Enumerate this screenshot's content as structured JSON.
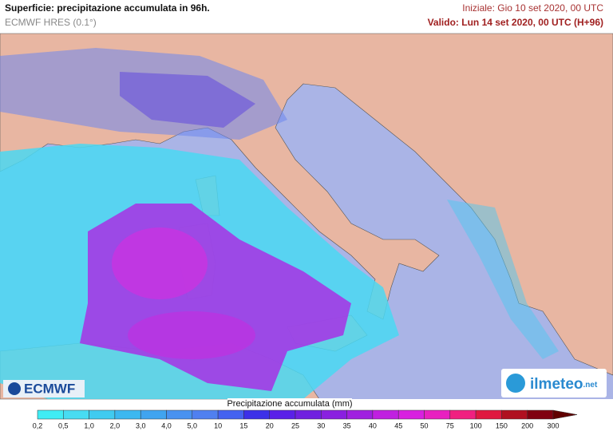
{
  "header": {
    "title": "Superficie: precipitazione accumulata in 96h.",
    "model": "ECMWF HRES (0.1°)",
    "initial": "Iniziale: Gio 10 set 2020, 00 UTC",
    "valid": "Valido: Lun 14 set 2020, 00 UTC (H+96)"
  },
  "logos": {
    "left": "ECMWF",
    "right": "ilmeteo",
    "right_suffix": ".net"
  },
  "legend": {
    "title": "Precipitazione accumulata (mm)",
    "ticks": [
      "0,2",
      "0,5",
      "1,0",
      "2,0",
      "3,0",
      "4,0",
      "5,0",
      "10",
      "15",
      "20",
      "25",
      "30",
      "35",
      "40",
      "45",
      "50",
      "75",
      "100",
      "150",
      "200",
      "300"
    ],
    "colors": [
      "#40ecf4",
      "#48dcf2",
      "#40cbf0",
      "#3cb8f0",
      "#40a4f0",
      "#4892f0",
      "#5080f0",
      "#4462f0",
      "#3c30e8",
      "#5a20e8",
      "#7020e0",
      "#8a20e0",
      "#a020e0",
      "#c020e0",
      "#d820e0",
      "#e820c0",
      "#f02080",
      "#e01840",
      "#b01020",
      "#800010"
    ],
    "arrow_color": "#600000"
  }
}
